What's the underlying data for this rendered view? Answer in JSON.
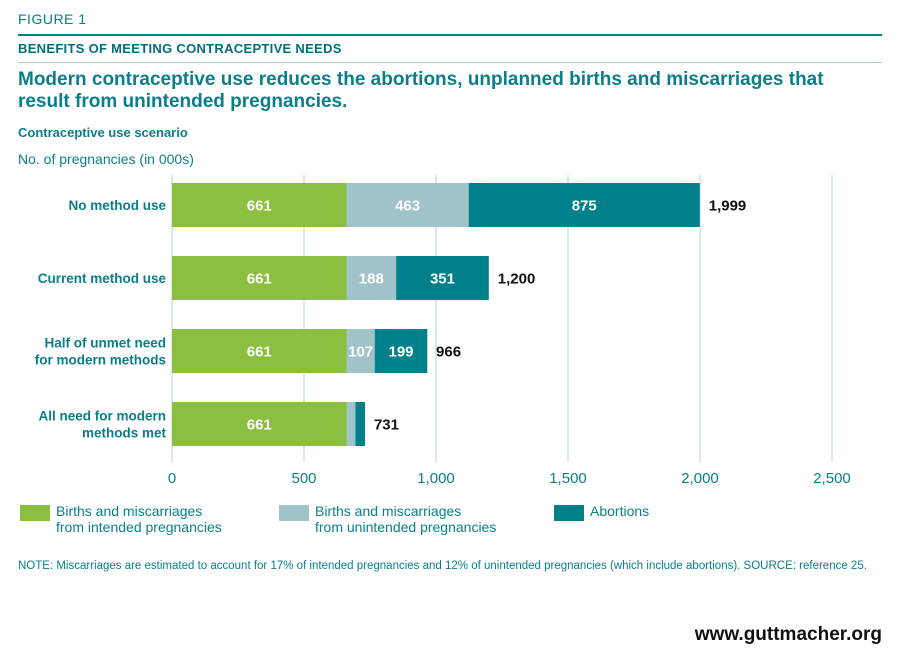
{
  "header": {
    "figure_label": "FIGURE 1",
    "section_title": "BENEFITS OF MEETING CONTRACEPTIVE NEEDS",
    "headline": "Modern contraceptive use reduces the abortions, unplanned births and miscarriages that result from unintended pregnancies."
  },
  "chart_data": {
    "type": "bar",
    "orientation": "horizontal",
    "stacked": true,
    "category_axis_title": "Contraceptive use scenario",
    "value_axis_title": "No. of pregnancies (in 000s)",
    "categories": [
      "No method use",
      "Current method use",
      "Half of unmet need\nfor modern methods",
      "All need for modern\nmethods met"
    ],
    "series": [
      {
        "name": "Births and miscarriages\nfrom intended pregnancies",
        "values": [
          661,
          661,
          661,
          661
        ],
        "color": "#8cbf3f",
        "label_color": "#ffffff"
      },
      {
        "name": "Births and miscarriages\nfrom unintended pregnancies",
        "values": [
          463,
          188,
          107,
          34
        ],
        "color": "#9fc3c9",
        "label_color": "#ffffff"
      },
      {
        "name": "Abortions",
        "values": [
          875,
          351,
          199,
          36
        ],
        "color": "#00808a",
        "label_color": "#ffffff"
      }
    ],
    "segment_labels": [
      [
        "661",
        "463",
        "875"
      ],
      [
        "661",
        "188",
        "351"
      ],
      [
        "661",
        "107",
        "199"
      ],
      [
        "661",
        "",
        ""
      ]
    ],
    "totals": [
      "1,999",
      "1,200",
      "966",
      "731"
    ],
    "total_values": [
      1999,
      1200,
      966,
      731
    ],
    "xlim": [
      0,
      2500
    ],
    "ticks": [
      0,
      500,
      1000,
      1500,
      2000,
      2500
    ],
    "tick_labels": [
      "0",
      "500",
      "1,000",
      "1,500",
      "2,000",
      "2,500"
    ],
    "grid": true,
    "legend_position": "bottom",
    "colors": {
      "text": "#0a7f89",
      "grid": "#b9d3d7",
      "total_label": "#111111"
    }
  },
  "note": "NOTE: Miscarriages are estimated to account for 17% of intended pregnancies and 12% of unintended pregnancies (which include abortions). SOURCE: reference 25.",
  "footer": {
    "url": "www.guttmacher.org"
  }
}
